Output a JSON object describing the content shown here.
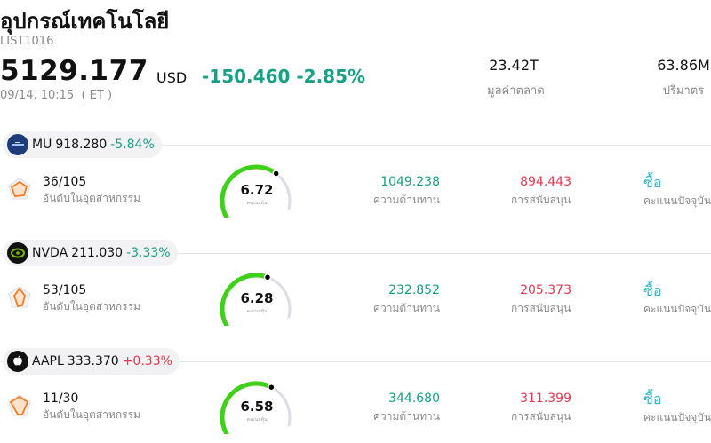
{
  "header": {
    "title": "อุปกรณ์เทคโนโลยี",
    "code": "LIST1016",
    "price": "5129.177",
    "currency": "USD",
    "change": "-150.460 -2.85%",
    "time": "09/14, 10:15  ( ET )"
  },
  "stats": {
    "market_cap_value": "23.42T",
    "market_cap_label": "มูลค่าตลาด",
    "volume_value": "63.86M",
    "volume_label": "ปริมาตร"
  },
  "labels": {
    "rank": "อันดับในอุตสาหกรรม",
    "score_caption": "คะแนนหุ้น",
    "resistance": "ความต้านทาน",
    "support": "การสนับสนุน",
    "current_rating": "คะแนนปัจจุบัน"
  },
  "colors": {
    "negative": "#16a085",
    "positive": "#e8384f",
    "gauge_fill": "#3fd11a",
    "gauge_track": "#dcdce6",
    "rating": "#2ab7c9"
  },
  "stocks": [
    {
      "symbol": "MU",
      "price": "918.280",
      "change_pct": "-5.84%",
      "direction": "down",
      "logo_icon": "micron-logo-icon",
      "rank": "36/105",
      "score": "6.72",
      "score_fraction": 0.72,
      "resistance": "1049.238",
      "support": "894.443",
      "rating": "ซื้อ"
    },
    {
      "symbol": "NVDA",
      "price": "211.030",
      "change_pct": "-3.33%",
      "direction": "down",
      "logo_icon": "nvidia-logo-icon",
      "rank": "53/105",
      "score": "6.28",
      "score_fraction": 0.65,
      "resistance": "232.852",
      "support": "205.373",
      "rating": "ซื้อ"
    },
    {
      "symbol": "AAPL",
      "price": "333.370",
      "change_pct": "+0.33%",
      "direction": "up",
      "logo_icon": "apple-logo-icon",
      "rank": "11/30",
      "score": "6.58",
      "score_fraction": 0.68,
      "resistance": "344.680",
      "support": "311.399",
      "rating": "ซื้อ"
    }
  ]
}
